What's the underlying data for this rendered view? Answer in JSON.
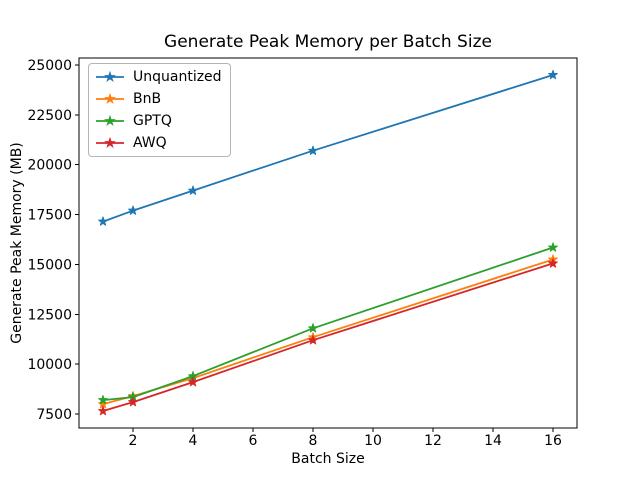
{
  "chart_data": {
    "type": "line",
    "title": "Generate Peak Memory per Batch Size",
    "xlabel": "Batch Size",
    "ylabel": "Generate Peak Memory (MB)",
    "x": [
      1,
      2,
      4,
      8,
      16
    ],
    "series": [
      {
        "name": "Unquantized",
        "color": "#1f77b4",
        "values": [
          17150,
          17700,
          18700,
          20700,
          24500
        ]
      },
      {
        "name": "BnB",
        "color": "#ff7f0e",
        "values": [
          8000,
          8400,
          9300,
          11350,
          15250
        ]
      },
      {
        "name": "GPTQ",
        "color": "#2ca02c",
        "values": [
          8200,
          8350,
          9400,
          11800,
          15850
        ]
      },
      {
        "name": "AWQ",
        "color": "#d62728",
        "values": [
          7650,
          8100,
          9100,
          11200,
          15050
        ]
      }
    ],
    "marker": "star",
    "line_width": 1.8,
    "xlim": [
      0.2,
      16.8
    ],
    "ylim": [
      6800,
      25350
    ],
    "xticks": [
      2,
      4,
      6,
      8,
      10,
      12,
      14,
      16
    ],
    "yticks": [
      7500,
      10000,
      12500,
      15000,
      17500,
      20000,
      22500,
      25000
    ],
    "grid": false,
    "legend": {
      "position": "upper-left",
      "entries": [
        "Unquantized",
        "BnB",
        "GPTQ",
        "AWQ"
      ]
    },
    "axis_color": "#000000",
    "background": "#ffffff"
  }
}
